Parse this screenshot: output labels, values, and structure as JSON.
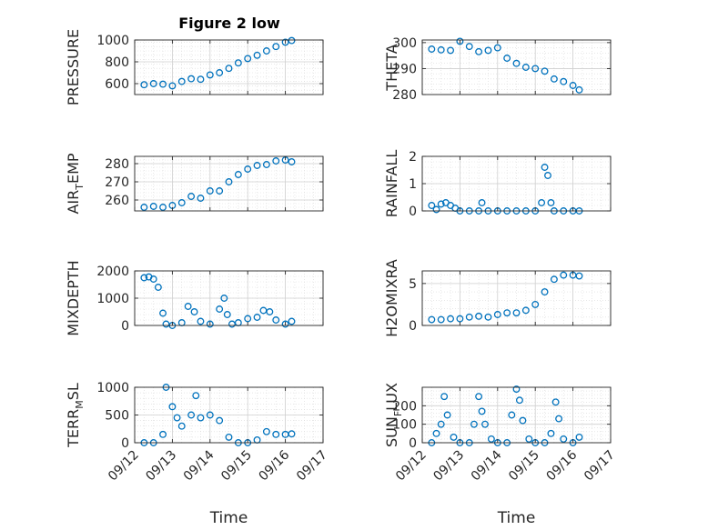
{
  "figure": {
    "title": "Figure 2 low"
  },
  "colors": {
    "marker": "#0072BD",
    "axis": "#262626",
    "grid": "#d9d9d9"
  },
  "chart_data": [
    {
      "type": "scatter",
      "title": "Figure 2 low",
      "ylabel": "PRESSURE",
      "xlim": [
        "09/12",
        "09/17"
      ],
      "ylim": [
        500,
        1000
      ],
      "yticks": [
        600,
        800,
        1000
      ],
      "x": [
        "09/12 06:00",
        "09/12 12:00",
        "09/12 18:00",
        "09/13 00:00",
        "09/13 06:00",
        "09/13 12:00",
        "09/13 18:00",
        "09/14 00:00",
        "09/14 06:00",
        "09/14 12:00",
        "09/14 18:00",
        "09/15 00:00",
        "09/15 06:00",
        "09/15 12:00",
        "09/15 18:00",
        "09/16 00:00",
        "09/16 04:00"
      ],
      "y": [
        590,
        600,
        595,
        580,
        620,
        645,
        640,
        680,
        700,
        740,
        790,
        830,
        860,
        900,
        940,
        980,
        995
      ],
      "grid": true
    },
    {
      "type": "scatter",
      "ylabel": "THETA",
      "xlim": [
        "09/12",
        "09/17"
      ],
      "ylim": [
        280,
        301
      ],
      "yticks": [
        280,
        290,
        300
      ],
      "x": [
        "09/12 06:00",
        "09/12 12:00",
        "09/12 18:00",
        "09/13 00:00",
        "09/13 06:00",
        "09/13 12:00",
        "09/13 18:00",
        "09/14 00:00",
        "09/14 06:00",
        "09/14 12:00",
        "09/14 18:00",
        "09/15 00:00",
        "09/15 06:00",
        "09/15 12:00",
        "09/15 18:00",
        "09/16 00:00",
        "09/16 04:00"
      ],
      "y": [
        297.5,
        297.2,
        297.0,
        300.5,
        298.5,
        296.5,
        297.0,
        298.0,
        294.0,
        292.0,
        290.5,
        290.0,
        289.0,
        286.0,
        285.0,
        283.5,
        281.8
      ],
      "grid": true
    },
    {
      "type": "scatter",
      "ylabel_main": "AIR",
      "ylabel_sub": "T",
      "ylabel_rest": "EMP",
      "xlim": [
        "09/12",
        "09/17"
      ],
      "ylim": [
        254,
        284
      ],
      "yticks": [
        260,
        270,
        280
      ],
      "x": [
        "09/12 06:00",
        "09/12 12:00",
        "09/12 18:00",
        "09/13 00:00",
        "09/13 06:00",
        "09/13 12:00",
        "09/13 18:00",
        "09/14 00:00",
        "09/14 06:00",
        "09/14 12:00",
        "09/14 18:00",
        "09/15 00:00",
        "09/15 06:00",
        "09/15 12:00",
        "09/15 18:00",
        "09/16 00:00",
        "09/16 04:00"
      ],
      "y": [
        256,
        256.5,
        256,
        257,
        258.5,
        262,
        261,
        265,
        265,
        270,
        274,
        277,
        279,
        279.5,
        281.5,
        282,
        281
      ],
      "grid": true
    },
    {
      "type": "scatter",
      "ylabel": "RAINFALL",
      "xlim": [
        "09/12",
        "09/17"
      ],
      "ylim": [
        0,
        2
      ],
      "yticks": [
        0,
        1,
        2
      ],
      "x": [
        "09/12 06:00",
        "09/12 09:00",
        "09/12 12:00",
        "09/12 15:00",
        "09/12 18:00",
        "09/12 21:00",
        "09/13 00:00",
        "09/13 06:00",
        "09/13 12:00",
        "09/13 14:00",
        "09/13 18:00",
        "09/14 00:00",
        "09/14 06:00",
        "09/14 12:00",
        "09/14 18:00",
        "09/15 00:00",
        "09/15 04:00",
        "09/15 06:00",
        "09/15 08:00",
        "09/15 10:00",
        "09/15 12:00",
        "09/15 18:00",
        "09/16 00:00",
        "09/16 04:00"
      ],
      "y": [
        0.2,
        0.05,
        0.25,
        0.3,
        0.2,
        0.1,
        0,
        0,
        0,
        0.3,
        0,
        0,
        0,
        0,
        0,
        0,
        0.3,
        1.6,
        1.3,
        0.3,
        0,
        0,
        0,
        0
      ],
      "grid": true
    },
    {
      "type": "scatter",
      "ylabel": "MIXDEPTH",
      "xlim": [
        "09/12",
        "09/17"
      ],
      "ylim": [
        0,
        2000
      ],
      "yticks": [
        0,
        1000,
        2000
      ],
      "x": [
        "09/12 06:00",
        "09/12 09:00",
        "09/12 12:00",
        "09/12 15:00",
        "09/12 18:00",
        "09/12 20:00",
        "09/13 00:00",
        "09/13 06:00",
        "09/13 10:00",
        "09/13 14:00",
        "09/13 18:00",
        "09/14 00:00",
        "09/14 06:00",
        "09/14 09:00",
        "09/14 11:00",
        "09/14 14:00",
        "09/14 18:00",
        "09/15 00:00",
        "09/15 06:00",
        "09/15 10:00",
        "09/15 14:00",
        "09/15 18:00",
        "09/16 00:00",
        "09/16 04:00"
      ],
      "y": [
        1750,
        1780,
        1700,
        1400,
        450,
        50,
        0,
        100,
        700,
        500,
        150,
        50,
        600,
        1000,
        400,
        50,
        100,
        250,
        300,
        550,
        500,
        200,
        50,
        150
      ],
      "grid": true
    },
    {
      "type": "scatter",
      "ylabel": "H2OMIXRA",
      "xlim": [
        "09/12",
        "09/17"
      ],
      "ylim": [
        0,
        6.5
      ],
      "yticks": [
        0,
        5
      ],
      "x": [
        "09/12 06:00",
        "09/12 12:00",
        "09/12 18:00",
        "09/13 00:00",
        "09/13 06:00",
        "09/13 12:00",
        "09/13 18:00",
        "09/14 00:00",
        "09/14 06:00",
        "09/14 12:00",
        "09/14 18:00",
        "09/15 00:00",
        "09/15 06:00",
        "09/15 12:00",
        "09/15 18:00",
        "09/16 00:00",
        "09/16 04:00"
      ],
      "y": [
        0.7,
        0.7,
        0.8,
        0.8,
        1.0,
        1.1,
        1.0,
        1.3,
        1.5,
        1.5,
        1.8,
        2.5,
        4.0,
        5.5,
        6.0,
        6.0,
        5.9
      ],
      "grid": true
    },
    {
      "type": "scatter",
      "ylabel_main": "TERR",
      "ylabel_sub": "M",
      "ylabel_rest": "SL",
      "xlim": [
        "09/12",
        "09/17"
      ],
      "ylim": [
        0,
        1000
      ],
      "yticks": [
        0,
        500,
        1000
      ],
      "x": [
        "09/12 06:00",
        "09/12 12:00",
        "09/12 18:00",
        "09/12 20:00",
        "09/13 00:00",
        "09/13 03:00",
        "09/13 06:00",
        "09/13 12:00",
        "09/13 15:00",
        "09/13 18:00",
        "09/14 00:00",
        "09/14 06:00",
        "09/14 12:00",
        "09/14 18:00",
        "09/15 00:00",
        "09/15 06:00",
        "09/15 12:00",
        "09/15 18:00",
        "09/16 00:00",
        "09/16 04:00"
      ],
      "y": [
        0,
        0,
        150,
        1000,
        650,
        450,
        300,
        500,
        850,
        450,
        500,
        400,
        100,
        0,
        0,
        50,
        200,
        150,
        150,
        160
      ],
      "grid": true
    },
    {
      "type": "scatter",
      "ylabel_main": "SUN",
      "ylabel_sub": "F",
      "ylabel_rest": "LUX",
      "xlim": [
        "09/12",
        "09/17"
      ],
      "ylim": [
        0,
        300
      ],
      "yticks": [
        0,
        100,
        200
      ],
      "x": [
        "09/12 06:00",
        "09/12 09:00",
        "09/12 12:00",
        "09/12 14:00",
        "09/12 16:00",
        "09/12 20:00",
        "09/13 00:00",
        "09/13 06:00",
        "09/13 09:00",
        "09/13 12:00",
        "09/13 14:00",
        "09/13 16:00",
        "09/13 20:00",
        "09/14 00:00",
        "09/14 06:00",
        "09/14 09:00",
        "09/14 12:00",
        "09/14 14:00",
        "09/14 16:00",
        "09/14 20:00",
        "09/15 00:00",
        "09/15 06:00",
        "09/15 10:00",
        "09/15 13:00",
        "09/15 15:00",
        "09/15 18:00",
        "09/16 00:00",
        "09/16 04:00"
      ],
      "y": [
        0,
        50,
        100,
        250,
        150,
        30,
        0,
        0,
        100,
        250,
        170,
        100,
        20,
        0,
        0,
        150,
        290,
        230,
        120,
        20,
        0,
        0,
        50,
        220,
        130,
        20,
        0,
        30
      ],
      "grid": true
    }
  ],
  "xaxis": {
    "ticks": [
      "09/12",
      "09/13",
      "09/14",
      "09/15",
      "09/16",
      "09/17"
    ],
    "label": "Time"
  }
}
